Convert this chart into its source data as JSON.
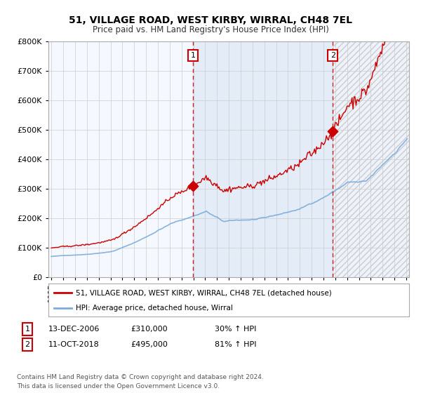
{
  "title": "51, VILLAGE ROAD, WEST KIRBY, WIRRAL, CH48 7EL",
  "subtitle": "Price paid vs. HM Land Registry's House Price Index (HPI)",
  "ylim": [
    0,
    800000
  ],
  "yticks": [
    0,
    100000,
    200000,
    300000,
    400000,
    500000,
    600000,
    700000,
    800000
  ],
  "year_start": 1995,
  "year_end": 2025,
  "sale1_date_num": 2006.96,
  "sale1_price": 310000,
  "sale1_label": "1",
  "sale1_date_str": "13-DEC-2006",
  "sale1_pct": "30%",
  "sale2_date_num": 2018.79,
  "sale2_price": 495000,
  "sale2_label": "2",
  "sale2_date_str": "11-OCT-2018",
  "sale2_pct": "81%",
  "hpi_color": "#7aacdc",
  "price_color": "#cc0000",
  "bg_color": "#ffffff",
  "plot_bg_color": "#f5f8ff",
  "shaded_color": "#dce8f5",
  "grid_color": "#cccccc",
  "legend_label_price": "51, VILLAGE ROAD, WEST KIRBY, WIRRAL, CH48 7EL (detached house)",
  "legend_label_hpi": "HPI: Average price, detached house, Wirral",
  "footer": "Contains HM Land Registry data © Crown copyright and database right 2024.\nThis data is licensed under the Open Government Licence v3.0."
}
